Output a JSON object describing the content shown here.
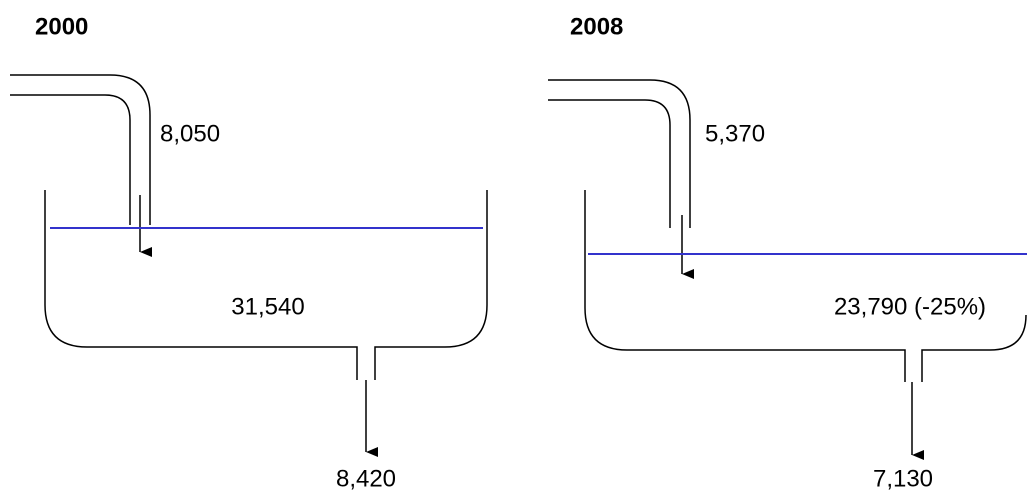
{
  "panels": [
    {
      "year": "2000",
      "inflow": "8,050",
      "stock": "31,540",
      "outflow": "8,420"
    },
    {
      "year": "2008",
      "inflow": "5,370",
      "stock": "23,790 (-25%)",
      "outflow": "7,130"
    }
  ]
}
